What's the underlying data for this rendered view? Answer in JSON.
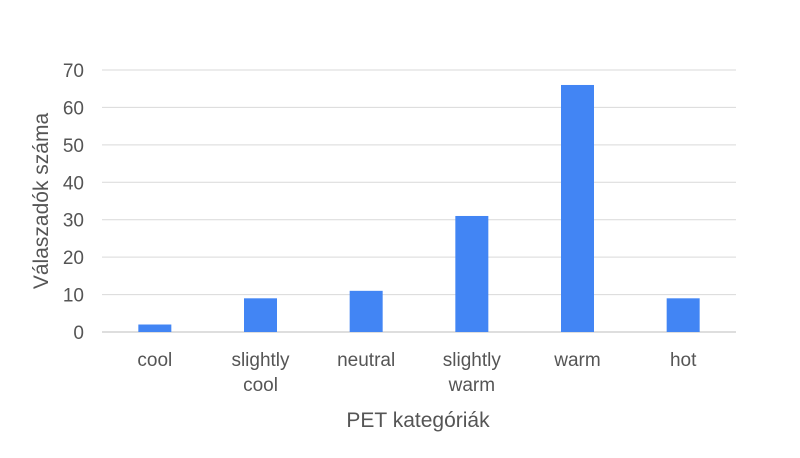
{
  "chart_data": {
    "type": "bar",
    "title": "",
    "xlabel": "PET kategóriák",
    "ylabel": "Válaszadók száma",
    "categories": [
      [
        "cool"
      ],
      [
        "slightly",
        "cool"
      ],
      [
        "neutral"
      ],
      [
        "slightly",
        "warm"
      ],
      [
        "warm"
      ],
      [
        "hot"
      ]
    ],
    "values": [
      2,
      9,
      11,
      31,
      66,
      9
    ],
    "ylim": [
      0,
      70
    ],
    "yticks": [
      0,
      10,
      20,
      30,
      40,
      50,
      60,
      70
    ],
    "grid": true,
    "legend": "none",
    "bar_color": "#4285f4"
  }
}
